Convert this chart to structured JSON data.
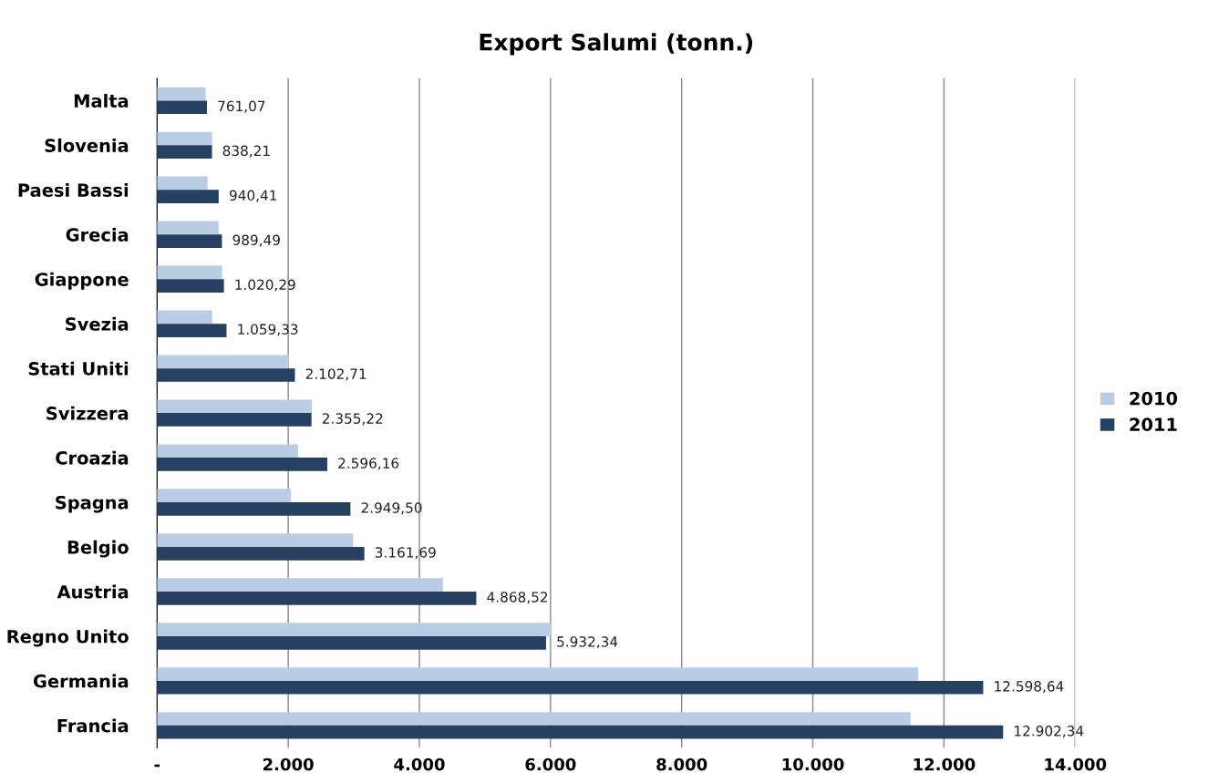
{
  "chart_data": {
    "type": "bar",
    "orientation": "horizontal",
    "title": "Export Salumi (tonn.)",
    "categories": [
      "Malta",
      "Slovenia",
      "Paesi Bassi",
      "Grecia",
      "Giappone",
      "Svezia",
      "Stati Uniti",
      "Svizzera",
      "Croazia",
      "Spagna",
      "Belgio",
      "Austria",
      "Regno Unito",
      "Germania",
      "Francia"
    ],
    "series": [
      {
        "name": "2010",
        "color": "#b9cde5",
        "values": [
          740,
          840,
          770,
          940,
          990,
          840,
          2010,
          2360,
          2150,
          2040,
          2990,
          4360,
          6010,
          11610,
          11490
        ]
      },
      {
        "name": "2011",
        "color": "#254061",
        "values": [
          761.07,
          838.21,
          940.41,
          989.49,
          1020.29,
          1059.33,
          2102.71,
          2355.22,
          2596.16,
          2949.5,
          3161.69,
          4868.52,
          5932.34,
          12598.64,
          12902.34
        ],
        "value_labels": [
          "761,07",
          "838,21",
          "940,41",
          "989,49",
          "1.020,29",
          "1.059,33",
          "2.102,71",
          "2.355,22",
          "2.596,16",
          "2.949,50",
          "3.161,69",
          "4.868,52",
          "5.932,34",
          "12.598,64",
          "12.902,34"
        ]
      }
    ],
    "xlim": [
      0,
      14000
    ],
    "xticks": [
      {
        "value": 0,
        "label": "-"
      },
      {
        "value": 2000,
        "label": "2.000"
      },
      {
        "value": 4000,
        "label": "4.000"
      },
      {
        "value": 6000,
        "label": "6.000"
      },
      {
        "value": 8000,
        "label": "8.000"
      },
      {
        "value": 10000,
        "label": "10.000"
      },
      {
        "value": 12000,
        "label": "12.000"
      },
      {
        "value": 14000,
        "label": "14.000"
      }
    ],
    "grid": "x",
    "legend": "right"
  }
}
